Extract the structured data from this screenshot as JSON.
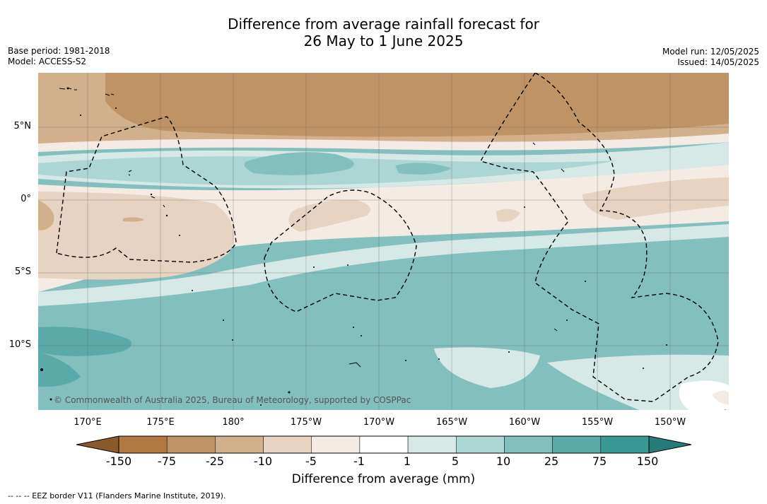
{
  "title": {
    "line1": "Difference from average rainfall forecast for",
    "line2": "26 May to 1 June 2025"
  },
  "meta_left": {
    "base_period": "Base period: 1981-2018",
    "model": "Model: ACCESS-S2"
  },
  "meta_right": {
    "model_run": "Model run: 12/05/2025",
    "issued": "Issued: 14/05/2025"
  },
  "map": {
    "lat_labels": [
      "5°N",
      "0°",
      "5°S",
      "10°S"
    ],
    "lon_labels": [
      "170°E",
      "175°E",
      "180°",
      "175°W",
      "170°W",
      "165°W",
      "160°W",
      "155°W",
      "150°W"
    ],
    "copyright": "© Commonwealth of Australia 2025, Bureau of Meteorology, supported by COSPPac",
    "overlay": "EEZ boundaries (dashed)"
  },
  "colorbar": {
    "label": "Difference from average (mm)",
    "ticks": [
      "-150",
      "-75",
      "-25",
      "-10",
      "-5",
      "-1",
      "1",
      "5",
      "10",
      "25",
      "75",
      "150"
    ],
    "colors": [
      "#8a5a2b",
      "#b07941",
      "#bf9366",
      "#d2b08c",
      "#e6d3c1",
      "#f4ebe5",
      "#ffffff",
      "#d6e9e7",
      "#acd6d4",
      "#82bfbd",
      "#5aaaa9",
      "#379896",
      "#257b79"
    ]
  },
  "footnote": "-- -- -- EEZ border V11 (Flanders Marine Institute, 2019)."
}
